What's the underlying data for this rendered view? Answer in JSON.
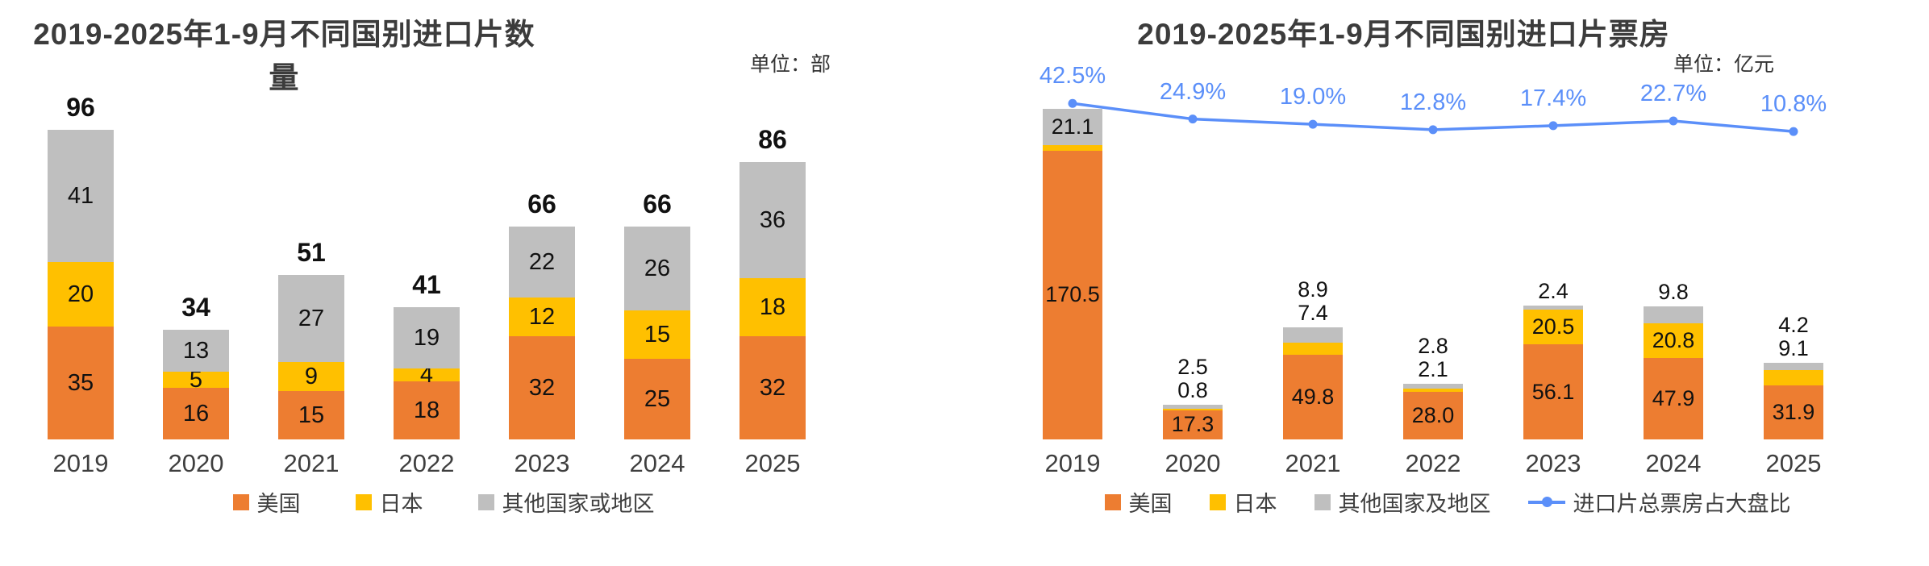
{
  "chart_data": [
    {
      "type": "bar",
      "stacked": true,
      "title": "2019-2025年1-9月不同国别进口片数量",
      "unit": "单位：部",
      "categories": [
        "2019",
        "2020",
        "2021",
        "2022",
        "2023",
        "2024",
        "2025"
      ],
      "series": [
        {
          "name": "美国",
          "color": "#ED7D31",
          "values": [
            35,
            16,
            15,
            18,
            32,
            25,
            32
          ],
          "labels": [
            "35",
            "16",
            "15",
            "18",
            "32",
            "25",
            "32"
          ]
        },
        {
          "name": "日本",
          "color": "#FFC000",
          "values": [
            20,
            5,
            9,
            4,
            12,
            15,
            18
          ],
          "labels": [
            "20",
            "5",
            "9",
            "4",
            "12",
            "15",
            "18"
          ]
        },
        {
          "name": "其他国家或地区",
          "color": "#BFBFBF",
          "values": [
            41,
            13,
            27,
            19,
            22,
            26,
            36
          ],
          "labels": [
            "41",
            "13",
            "27",
            "19",
            "22",
            "26",
            "36"
          ]
        }
      ],
      "totals": [
        "96",
        "34",
        "51",
        "41",
        "66",
        "66",
        "86"
      ],
      "legend_position": "bottom",
      "grid": false
    },
    {
      "type": "bar-line",
      "stacked": true,
      "title": "2019-2025年1-9月不同国别进口片票房",
      "unit": "单位：亿元",
      "categories": [
        "2019",
        "2020",
        "2021",
        "2022",
        "2023",
        "2024",
        "2025"
      ],
      "series": [
        {
          "name": "美国",
          "color": "#ED7D31",
          "values": [
            170.5,
            17.3,
            49.8,
            28.0,
            56.1,
            47.9,
            31.9
          ],
          "labels": [
            "170.5",
            "17.3",
            "49.8",
            "28.0",
            "56.1",
            "47.9",
            "31.9"
          ]
        },
        {
          "name": "日本",
          "color": "#FFC000",
          "values": [
            3.5,
            0.8,
            7.4,
            2.1,
            20.5,
            20.8,
            9.1
          ],
          "labels": [
            "",
            "0.8",
            "7.4",
            "2.1",
            "20.5",
            "20.8",
            "9.1"
          ]
        },
        {
          "name": "其他国家及地区",
          "color": "#BFBFBF",
          "values": [
            21.1,
            2.5,
            8.9,
            2.8,
            2.4,
            9.8,
            4.2
          ],
          "labels": [
            "21.1",
            "2.5",
            "8.9",
            "2.8",
            "2.4",
            "9.8",
            "4.2"
          ]
        }
      ],
      "line": {
        "name": "进口片总票房占大盘比",
        "color": "#5B8FF9",
        "values": [
          42.5,
          24.9,
          19.0,
          12.8,
          17.4,
          22.7,
          10.8
        ],
        "labels": [
          "42.5%",
          "24.9%",
          "19.0%",
          "12.8%",
          "17.4%",
          "22.7%",
          "10.8%"
        ]
      },
      "legend_position": "bottom",
      "grid": false
    }
  ]
}
